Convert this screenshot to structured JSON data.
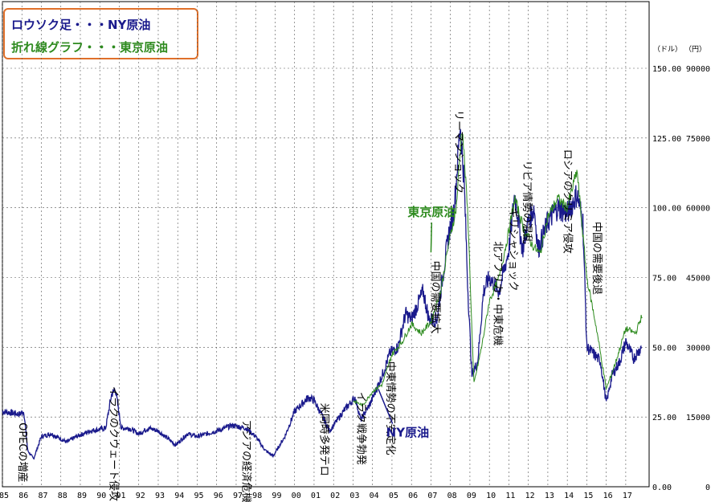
{
  "chart_data": {
    "type": "line",
    "legend": {
      "candle_label": "ロウソク足・・・NY原油",
      "line_label": "折れ線グラフ・・・東京原油",
      "candle_color": "#1a1a8c",
      "line_color": "#2e8b1f"
    },
    "y_left_unit": "（ドル）",
    "y_right_unit": "（円）",
    "y_left_ticks": [
      "150.00",
      "125.00",
      "100.00",
      "75.00",
      "50.00",
      "25.00",
      "0.00"
    ],
    "y_right_ticks": [
      "90000",
      "75000",
      "60000",
      "45000",
      "30000",
      "15000",
      "0"
    ],
    "ylim_left": [
      0,
      150
    ],
    "ylim_right": [
      0,
      90000
    ],
    "x_ticks": [
      "85",
      "86",
      "87",
      "88",
      "89",
      "90",
      "91",
      "92",
      "93",
      "94",
      "95",
      "96",
      "97",
      "98",
      "99",
      "00",
      "01",
      "02",
      "03",
      "04",
      "05",
      "06",
      "07",
      "08",
      "09",
      "10",
      "11",
      "12",
      "13",
      "14",
      "15",
      "16",
      "17"
    ],
    "series": [
      {
        "name": "NY原油",
        "x": [
          1985.0,
          1985.9,
          1986.1,
          1986.3,
          1986.6,
          1987.0,
          1987.5,
          1988.3,
          1988.8,
          1989.5,
          1990.3,
          1990.6,
          1990.8,
          1991.1,
          1991.5,
          1992.0,
          1992.5,
          1993.0,
          1993.9,
          1994.5,
          1995.0,
          1995.5,
          1996.0,
          1996.8,
          1997.5,
          1998.0,
          1998.5,
          1998.9,
          1999.5,
          2000.0,
          2000.7,
          2001.0,
          2001.8,
          2002.5,
          2003.1,
          2003.4,
          2003.9,
          2004.5,
          2004.9,
          2005.3,
          2005.7,
          2006.0,
          2006.6,
          2006.9,
          2007.3,
          2007.6,
          2007.9,
          2008.2,
          2008.5,
          2008.7,
          2008.9,
          2009.1,
          2009.4,
          2009.7,
          2010.0,
          2010.5,
          2011.0,
          2011.3,
          2011.7,
          2012.0,
          2012.3,
          2012.5,
          2013.0,
          2013.5,
          2014.0,
          2014.5,
          2014.8,
          2015.0,
          2015.3,
          2015.7,
          2016.0,
          2016.3,
          2016.7,
          2017.0,
          2017.4,
          2017.8
        ],
        "y": [
          27,
          26,
          27,
          13,
          10,
          18,
          19,
          16,
          18,
          20,
          21,
          33,
          35,
          21,
          21,
          19,
          21,
          20,
          15,
          19,
          18,
          19,
          20,
          22,
          21,
          18,
          13,
          11,
          18,
          27,
          32,
          31,
          20,
          27,
          32,
          24,
          30,
          40,
          48,
          50,
          62,
          60,
          70,
          60,
          60,
          75,
          90,
          100,
          130,
          110,
          70,
          40,
          45,
          70,
          75,
          70,
          85,
          105,
          85,
          95,
          100,
          85,
          95,
          100,
          98,
          105,
          95,
          50,
          48,
          45,
          30,
          40,
          45,
          52,
          46,
          50
        ]
      },
      {
        "name": "東京原油",
        "x": [
          2003.0,
          2003.5,
          2004.0,
          2004.5,
          2005.0,
          2005.5,
          2006.0,
          2006.5,
          2007.0,
          2007.5,
          2007.9,
          2008.3,
          2008.6,
          2008.9,
          2009.2,
          2009.6,
          2010.0,
          2010.5,
          2011.0,
          2011.3,
          2011.8,
          2012.2,
          2012.6,
          2013.0,
          2013.5,
          2014.0,
          2014.5,
          2015.0,
          2015.5,
          2016.0,
          2016.5,
          2017.0,
          2017.5,
          2017.85
        ],
        "y": [
          18500,
          17500,
          20500,
          22000,
          28500,
          31000,
          35000,
          33000,
          35500,
          42000,
          52000,
          60000,
          78000,
          58000,
          22000,
          30000,
          40000,
          45000,
          55000,
          62000,
          55000,
          52000,
          50000,
          58000,
          62000,
          60000,
          68000,
          45000,
          34000,
          21000,
          27000,
          34000,
          33000,
          37000
        ]
      }
    ],
    "annotations": [
      {
        "text": "OPECの増産",
        "x": 1986.0,
        "y": 23
      },
      {
        "text": "イラクのクウェート侵攻",
        "x": 1990.7,
        "y": 36
      },
      {
        "text": "アジアの経済危機",
        "x": 1997.5,
        "y": 24
      },
      {
        "text": "米同時多発テロ",
        "x": 2001.5,
        "y": 30
      },
      {
        "text": "イラク戦争勃発",
        "x": 2003.4,
        "y": 34
      },
      {
        "text": "中東情勢の不安定化",
        "x": 2004.9,
        "y": 45
      },
      {
        "text": "中国の需要拡大",
        "x": 2007.2,
        "y": 81
      },
      {
        "text": "リーマンショック",
        "x": 2008.4,
        "y": 135
      },
      {
        "text": "北アフリカ・中東危機",
        "x": 2010.4,
        "y": 88
      },
      {
        "text": "ギリシャショック",
        "x": 2011.2,
        "y": 100
      },
      {
        "text": "リビア情勢の混乱",
        "x": 2011.9,
        "y": 117
      },
      {
        "text": "ロシアのクリミア侵攻",
        "x": 2014.0,
        "y": 121
      },
      {
        "text": "中国の需要後退",
        "x": 2015.5,
        "y": 95
      }
    ],
    "callouts": [
      {
        "text": "東京原油",
        "x": 2005.8,
        "y": 97,
        "target_x": 2007.0,
        "target_y": 84
      },
      {
        "text": "NY原油",
        "x": 2004.7,
        "y": 18,
        "target_x": 2004.3,
        "target_y": 35
      }
    ]
  }
}
